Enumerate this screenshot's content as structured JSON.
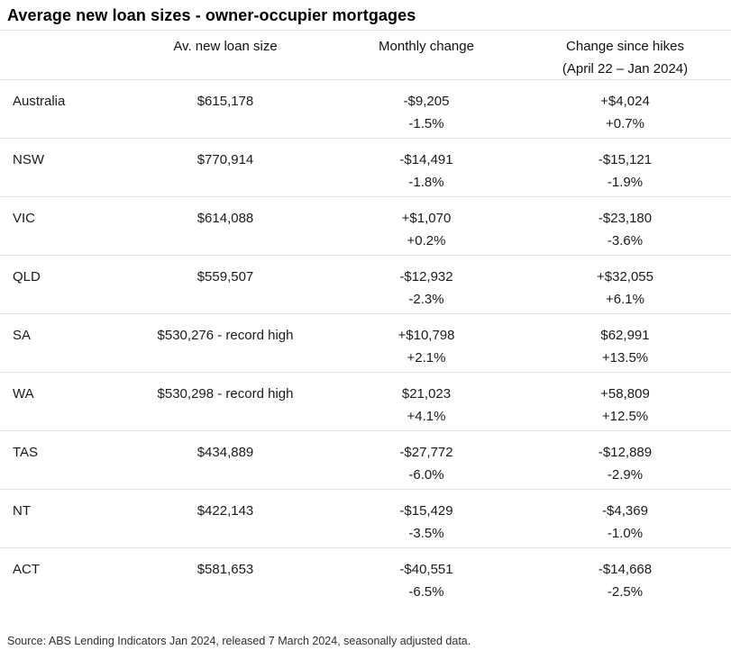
{
  "title": "Average new loan sizes - owner-occupier mortgages",
  "table": {
    "headers": {
      "region": "",
      "loan_size": "Av. new loan size",
      "monthly_change": "Monthly change",
      "hikes_change": "Change since hikes",
      "hikes_change_sub": "(April 22 – Jan 2024)"
    },
    "rows": [
      {
        "region": "Australia",
        "loan_size": "$615,178",
        "monthly_change": "-$9,205",
        "monthly_change_pct": "-1.5%",
        "hikes_change": "+$4,024",
        "hikes_change_pct": "+0.7%"
      },
      {
        "region": "NSW",
        "loan_size": "$770,914",
        "monthly_change": "-$14,491",
        "monthly_change_pct": "-1.8%",
        "hikes_change": "-$15,121",
        "hikes_change_pct": "-1.9%"
      },
      {
        "region": "VIC",
        "loan_size": "$614,088",
        "monthly_change": "+$1,070",
        "monthly_change_pct": "+0.2%",
        "hikes_change": "-$23,180",
        "hikes_change_pct": "-3.6%"
      },
      {
        "region": "QLD",
        "loan_size": "$559,507",
        "monthly_change": "-$12,932",
        "monthly_change_pct": "-2.3%",
        "hikes_change": "+$32,055",
        "hikes_change_pct": "+6.1%"
      },
      {
        "region": "SA",
        "loan_size": "$530,276 - record high",
        "monthly_change": "+$10,798",
        "monthly_change_pct": "+2.1%",
        "hikes_change": "$62,991",
        "hikes_change_pct": "+13.5%"
      },
      {
        "region": "WA",
        "loan_size": "$530,298 - record high",
        "monthly_change": "$21,023",
        "monthly_change_pct": "+4.1%",
        "hikes_change": "+58,809",
        "hikes_change_pct": "+12.5%"
      },
      {
        "region": "TAS",
        "loan_size": "$434,889",
        "monthly_change": "-$27,772",
        "monthly_change_pct": "-6.0%",
        "hikes_change": "-$12,889",
        "hikes_change_pct": "-2.9%"
      },
      {
        "region": "NT",
        "loan_size": "$422,143",
        "monthly_change": "-$15,429",
        "monthly_change_pct": "-3.5%",
        "hikes_change": "-$4,369",
        "hikes_change_pct": "-1.0%"
      },
      {
        "region": "ACT",
        "loan_size": "$581,653",
        "monthly_change": "-$40,551",
        "monthly_change_pct": "-6.5%",
        "hikes_change": "-$14,668",
        "hikes_change_pct": "-2.5%"
      }
    ]
  },
  "source": "Source: ABS Lending Indicators Jan 2024, released 7 March 2024, seasonally adjusted data.",
  "colors": {
    "background": "#ffffff",
    "text": "#1a1a1a",
    "divider": "#e4e4e4"
  },
  "chart_data": {
    "type": "table",
    "title": "Average new loan sizes - owner-occupier mortgages",
    "columns": [
      "",
      "Av. new loan size",
      "Monthly change",
      "Change since hikes (April 22 – Jan 2024)"
    ],
    "rows": [
      [
        "Australia",
        "$615,178",
        "-$9,205 / -1.5%",
        "+$4,024 / +0.7%"
      ],
      [
        "NSW",
        "$770,914",
        "-$14,491 / -1.8%",
        "-$15,121 / -1.9%"
      ],
      [
        "VIC",
        "$614,088",
        "+$1,070 / +0.2%",
        "-$23,180 / -3.6%"
      ],
      [
        "QLD",
        "$559,507",
        "-$12,932 / -2.3%",
        "+$32,055 / +6.1%"
      ],
      [
        "SA",
        "$530,276 - record high",
        "+$10,798 / +2.1%",
        "$62,991 / +13.5%"
      ],
      [
        "WA",
        "$530,298 - record high",
        "$21,023 / +4.1%",
        "+58,809 / +12.5%"
      ],
      [
        "TAS",
        "$434,889",
        "-$27,772 / -6.0%",
        "-$12,889 / -2.9%"
      ],
      [
        "NT",
        "$422,143",
        "-$15,429 / -3.5%",
        "-$4,369 / -1.0%"
      ],
      [
        "ACT",
        "$581,653",
        "-$40,551 / -6.5%",
        "-$14,668 / -2.5%"
      ]
    ],
    "source": "Source: ABS Lending Indicators Jan 2024, released 7 March 2024, seasonally adjusted data.",
    "layout": {
      "numeric_columns_aligned": "center",
      "region_column_aligned": "left",
      "grid": "horizontal dividers only"
    }
  }
}
